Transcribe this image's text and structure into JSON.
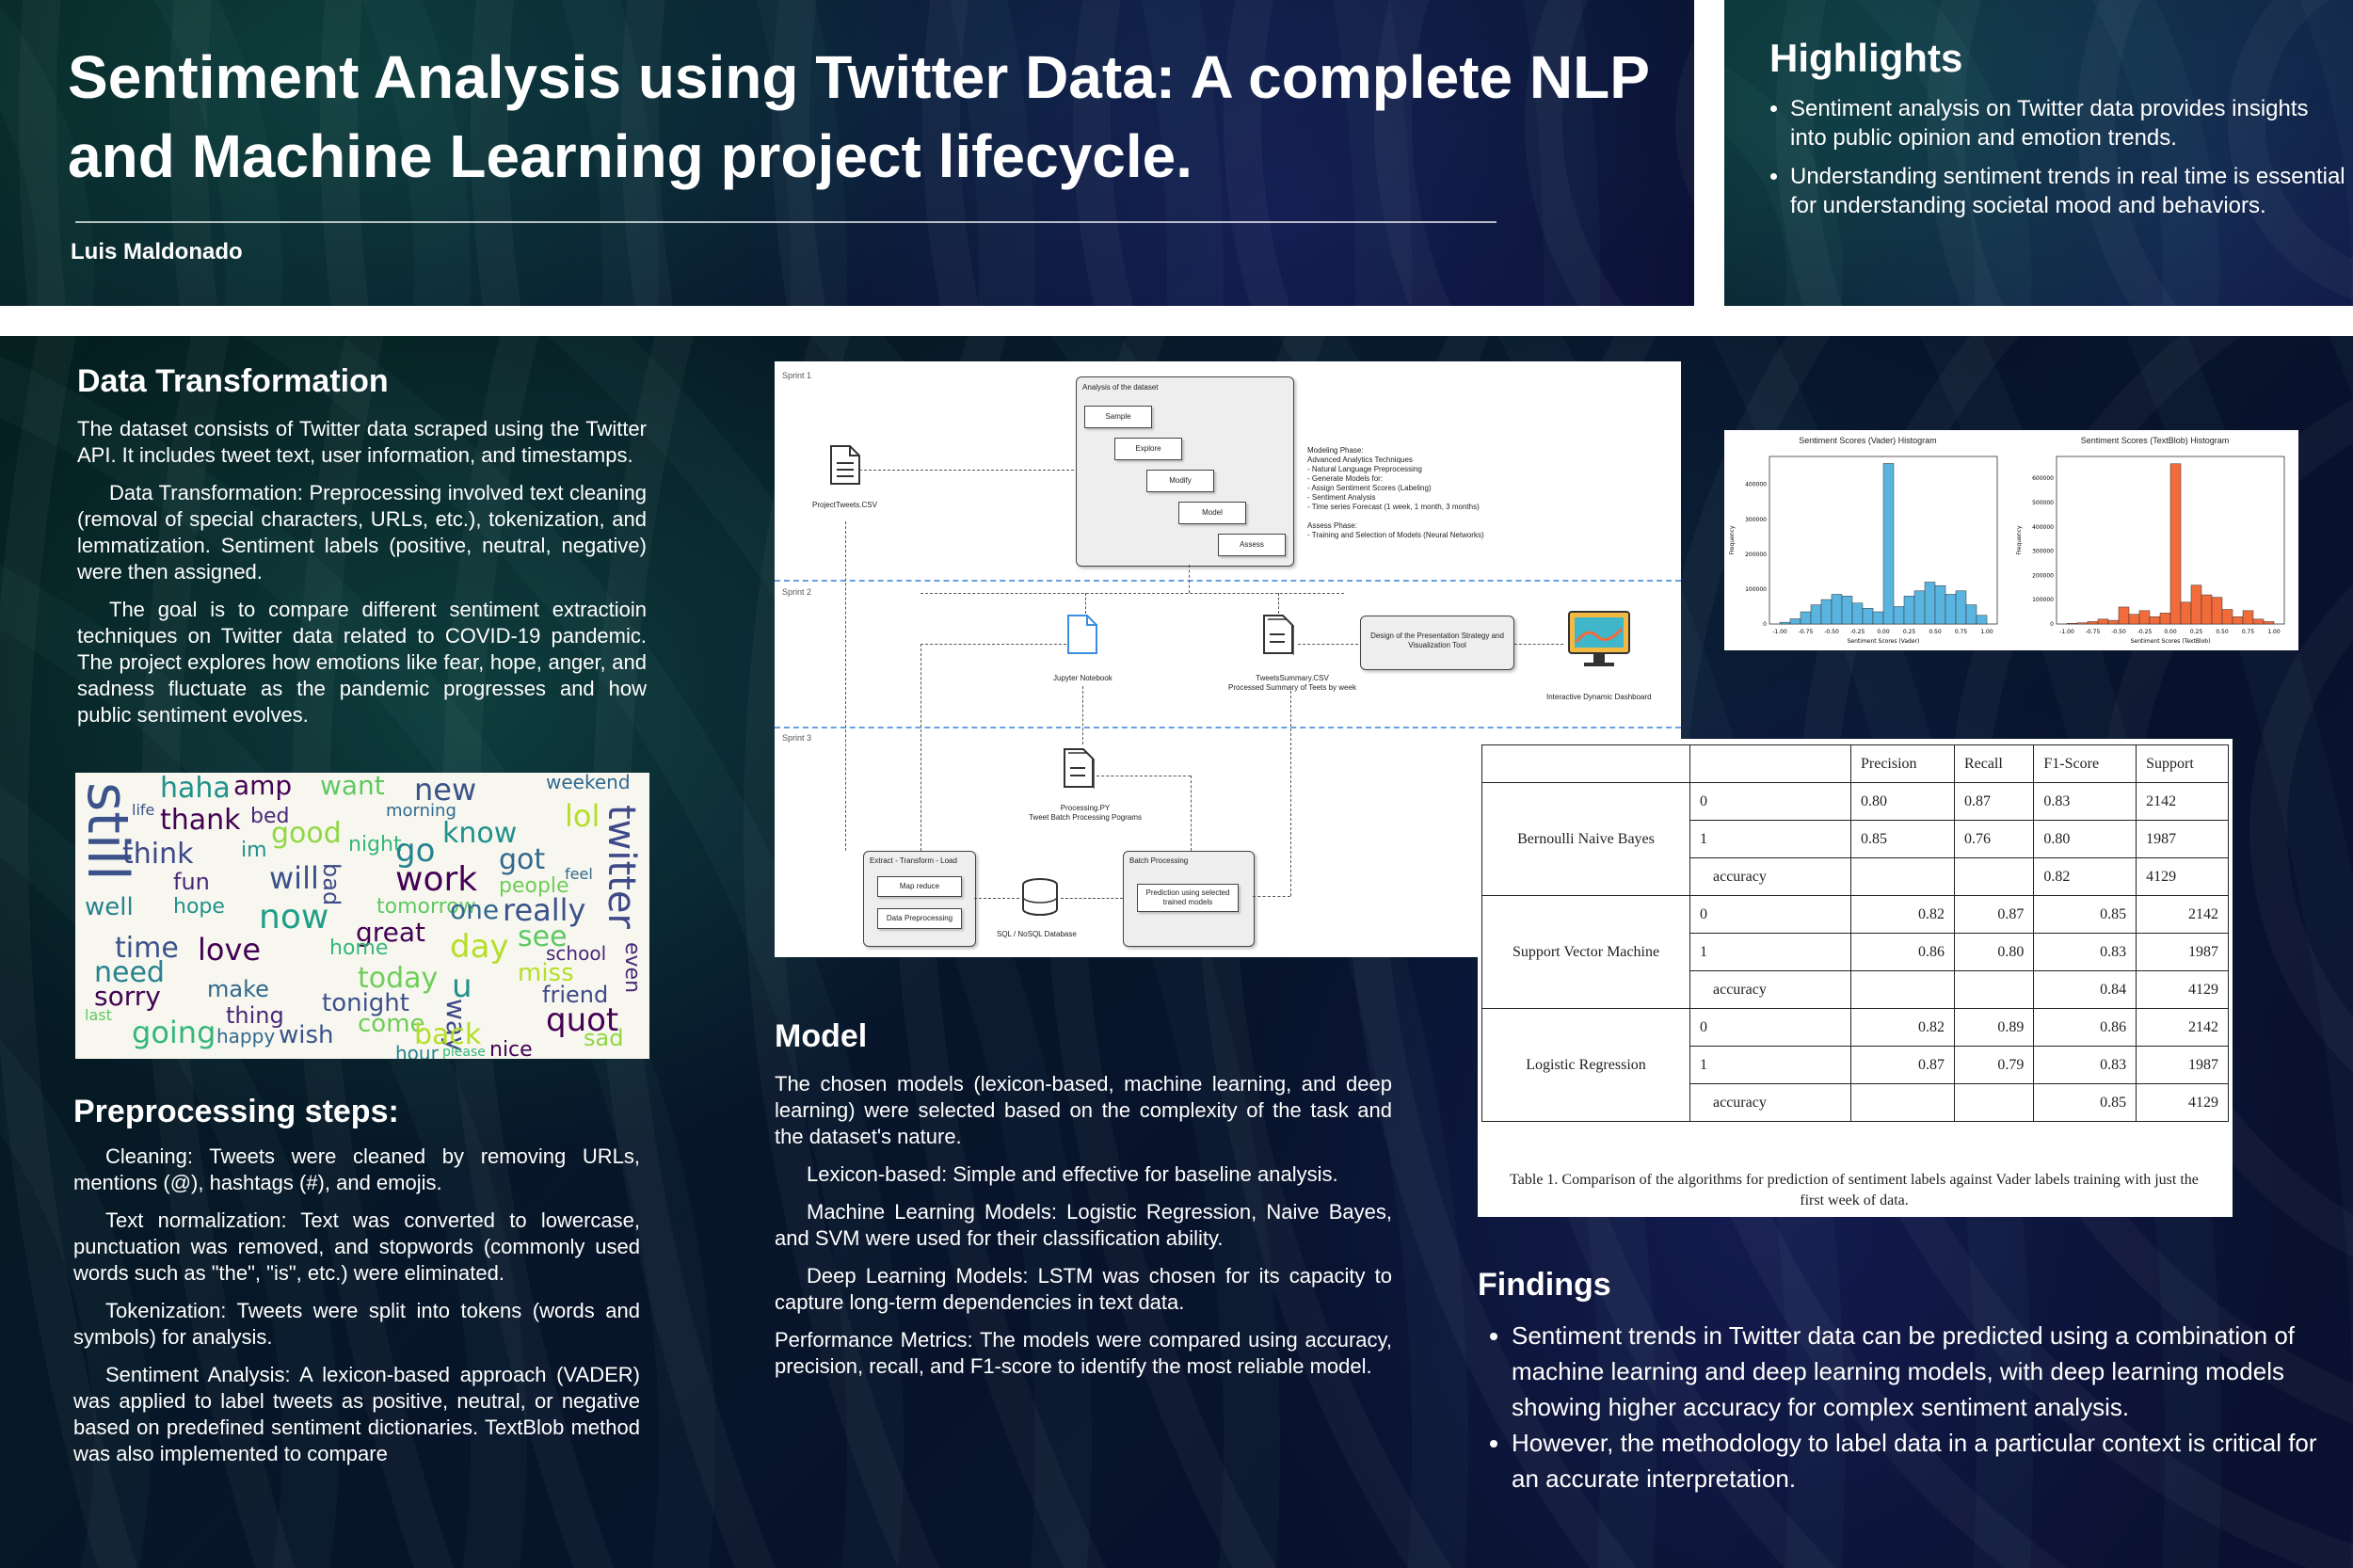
{
  "header": {
    "title": "Sentiment Analysis using Twitter Data: A complete NLP and Machine Learning project lifecycle.",
    "author": "Luis Maldonado"
  },
  "highlights": {
    "title": "Highlights",
    "items": [
      "Sentiment analysis on Twitter data provides insights into public opinion and emotion trends.",
      "Understanding sentiment trends in real time is essential for understanding societal mood and behaviors."
    ]
  },
  "data_transformation": {
    "title": "Data Transformation",
    "paragraphs": [
      "The dataset consists of Twitter data scraped using the Twitter API. It includes tweet text, user information, and timestamps.",
      "Data Transformation: Preprocessing involved text cleaning (removal of special characters, URLs, etc.), tokenization, and lemmatization. Sentiment labels (positive, neutral, negative) were then assigned.",
      "The goal is to compare different sentiment extractioin techniques on Twitter data related to COVID-19 pandemic. The project explores how emotions like fear, hope, anger, and sadness fluctuate as the pandemic progresses and how public sentiment evolves."
    ]
  },
  "wordcloud": {
    "words": [
      {
        "t": "still",
        "c": "#3b528b"
      },
      {
        "t": "haha",
        "c": "#21918c"
      },
      {
        "t": "amp",
        "c": "#440154"
      },
      {
        "t": "want",
        "c": "#5ec962"
      },
      {
        "t": "new",
        "c": "#3b528b"
      },
      {
        "t": "weekend",
        "c": "#31688e"
      },
      {
        "t": "thank",
        "c": "#440154"
      },
      {
        "t": "bed",
        "c": "#482878"
      },
      {
        "t": "good",
        "c": "#90d743"
      },
      {
        "t": "morning",
        "c": "#31688e"
      },
      {
        "t": "know",
        "c": "#21918c"
      },
      {
        "t": "lol",
        "c": "#b5de2b"
      },
      {
        "t": "think",
        "c": "#3e4989"
      },
      {
        "t": "night",
        "c": "#35b779"
      },
      {
        "t": "go",
        "c": "#26828e"
      },
      {
        "t": "work",
        "c": "#440154"
      },
      {
        "t": "got",
        "c": "#31688e"
      },
      {
        "t": "fun",
        "c": "#482878"
      },
      {
        "t": "will",
        "c": "#3b528b"
      },
      {
        "t": "hope",
        "c": "#21918c"
      },
      {
        "t": "tomorrow",
        "c": "#5ec962"
      },
      {
        "t": "people",
        "c": "#6ece58"
      },
      {
        "t": "twitter",
        "c": "#3e4989"
      },
      {
        "t": "well",
        "c": "#26828e"
      },
      {
        "t": "now",
        "c": "#1f9e89"
      },
      {
        "t": "great",
        "c": "#440154"
      },
      {
        "t": "one",
        "c": "#31688e"
      },
      {
        "t": "really",
        "c": "#3b528b"
      },
      {
        "t": "time",
        "c": "#3b528b"
      },
      {
        "t": "love",
        "c": "#440154"
      },
      {
        "t": "home",
        "c": "#35b779"
      },
      {
        "t": "day",
        "c": "#b5de2b"
      },
      {
        "t": "see",
        "c": "#5ec962"
      },
      {
        "t": "school",
        "c": "#482878"
      },
      {
        "t": "need",
        "c": "#26828e"
      },
      {
        "t": "today",
        "c": "#6ece58"
      },
      {
        "t": "miss",
        "c": "#b5de2b"
      },
      {
        "t": "friend",
        "c": "#3e4989"
      },
      {
        "t": "sorry",
        "c": "#440154"
      },
      {
        "t": "make",
        "c": "#31688e"
      },
      {
        "t": "tonight",
        "c": "#3b528b"
      },
      {
        "t": "u",
        "c": "#21918c"
      },
      {
        "t": "way",
        "c": "#3e4989"
      },
      {
        "t": "quot",
        "c": "#440154"
      },
      {
        "t": "going",
        "c": "#35b779"
      },
      {
        "t": "thing",
        "c": "#482878"
      },
      {
        "t": "wish",
        "c": "#3b528b"
      },
      {
        "t": "come",
        "c": "#6ece58"
      },
      {
        "t": "back",
        "c": "#b5de2b"
      },
      {
        "t": "nice",
        "c": "#440154"
      },
      {
        "t": "sad",
        "c": "#90d743"
      },
      {
        "t": "happy",
        "c": "#31688e"
      },
      {
        "t": "hour",
        "c": "#26828e"
      },
      {
        "t": "even",
        "c": "#482878"
      },
      {
        "t": "bad",
        "c": "#3e4989"
      },
      {
        "t": "im",
        "c": "#21918c"
      },
      {
        "t": "last",
        "c": "#5ec962"
      },
      {
        "t": "life",
        "c": "#3b528b"
      },
      {
        "t": "feel",
        "c": "#31688e"
      },
      {
        "t": "please",
        "c": "#35b779"
      }
    ]
  },
  "preprocessing": {
    "title": "Preprocessing steps:",
    "paragraphs": [
      "Cleaning: Tweets were cleaned by removing URLs, mentions (@), hashtags (#), and emojis.",
      "Text normalization: Text was converted to lowercase, punctuation was removed, and stopwords (commonly used words such as \"the\", \"is\", etc.) were eliminated.",
      "Tokenization: Tweets were split into tokens (words and symbols) for analysis.",
      "Sentiment Analysis: A lexicon-based approach (VADER) was applied to label tweets as positive, neutral, or negative based on predefined sentiment dictionaries. TextBlob method was also implemented to compare"
    ]
  },
  "workflow": {
    "sprint1": "Sprint 1",
    "sprint2": "Sprint 2",
    "sprint3": "Sprint 3",
    "analysis_title": "Analysis of the dataset",
    "steps": [
      "Sample",
      "Explore",
      "Modify",
      "Model",
      "Assess"
    ],
    "project_tweets": "ProjectTweets.CSV",
    "modeling_notes": "Modeling Phase:\nAdvanced Analytics Techniques\n- Natural Language Preprocessing\n- Generate Models for:\n   - Assign Sentiment Scores (Labeling)\n   - Sentiment Analysis\n   - Time series Forecast (1 week, 1 month, 3 months)\n\nAssess Phase:\n- Training and Selection of Models (Neural Networks)",
    "jupyter": "Jupyter Notebook",
    "tweets_summary": "TweetsSummary.CSV\nProcessed Summary of Teets by week",
    "presentation": "Design of the Presentation Strategy and Visualization Tool",
    "dashboard": "Interactive Dynamic Dashboard",
    "processing": "Processing.PY\nTweet Batch Processing Pograms",
    "etl_title": "Extract - Transform - Load",
    "map_reduce": "Map reduce",
    "data_preprocessing": "Data Preprocessing",
    "database": "SQL / NoSQL Database",
    "batch_title": "Batch Processing",
    "prediction": "Prediction using selected trained models"
  },
  "chart_data": [
    {
      "type": "bar",
      "title": "Sentiment Scores (Vader) Histogram",
      "xlabel": "Sentiment Scores (Vader)",
      "ylabel": "Frequency",
      "x": [
        -1.0,
        -0.9,
        -0.8,
        -0.7,
        -0.6,
        -0.5,
        -0.4,
        -0.3,
        -0.2,
        -0.1,
        0.0,
        0.1,
        0.2,
        0.3,
        0.4,
        0.5,
        0.6,
        0.7,
        0.8,
        0.9
      ],
      "values": [
        5000,
        15000,
        35000,
        55000,
        70000,
        85000,
        80000,
        60000,
        45000,
        35000,
        460000,
        50000,
        80000,
        95000,
        120000,
        110000,
        85000,
        95000,
        55000,
        25000
      ],
      "ylim": [
        0,
        480000
      ],
      "xticks": [
        "-1.00",
        "-0.75",
        "-0.50",
        "-0.25",
        "0.00",
        "0.25",
        "0.50",
        "0.75",
        "1.00"
      ],
      "yticks": [
        "0",
        "100000",
        "200000",
        "300000",
        "400000"
      ],
      "color": "#5ab4e0"
    },
    {
      "type": "bar",
      "title": "Sentiment Scores (TextBlob) Histogram",
      "xlabel": "Sentiment Scores (TextBlob)",
      "ylabel": "Frequency",
      "x": [
        -1.0,
        -0.9,
        -0.8,
        -0.7,
        -0.6,
        -0.5,
        -0.4,
        -0.3,
        -0.2,
        -0.1,
        0.0,
        0.1,
        0.2,
        0.3,
        0.4,
        0.5,
        0.6,
        0.7,
        0.8,
        0.9
      ],
      "values": [
        3000,
        5000,
        10000,
        20000,
        15000,
        70000,
        40000,
        55000,
        30000,
        45000,
        660000,
        90000,
        160000,
        120000,
        110000,
        60000,
        30000,
        55000,
        20000,
        10000
      ],
      "ylim": [
        0,
        690000
      ],
      "xticks": [
        "-1.00",
        "-0.75",
        "-0.50",
        "-0.25",
        "0.00",
        "0.25",
        "0.50",
        "0.75",
        "1.00"
      ],
      "yticks": [
        "0",
        "100000",
        "200000",
        "300000",
        "400000",
        "500000",
        "600000"
      ],
      "color": "#f26b3a"
    }
  ],
  "results_table": {
    "headers": [
      "",
      "",
      "Precision",
      "Recall",
      "F1-Score",
      "Support"
    ],
    "models": [
      {
        "name": "Bernoulli Naive Bayes",
        "rows": [
          {
            "label": "0",
            "precision": "0.80",
            "recall": "0.87",
            "f1": "0.83",
            "support": "2142"
          },
          {
            "label": "1",
            "precision": "0.85",
            "recall": "0.76",
            "f1": "0.80",
            "support": "1987"
          },
          {
            "label": "accuracy",
            "precision": "",
            "recall": "",
            "f1": "0.82",
            "support": "4129"
          }
        ]
      },
      {
        "name": "Support Vector Machine",
        "rows": [
          {
            "label": "0",
            "precision": "0.82",
            "recall": "0.87",
            "f1": "0.85",
            "support": "2142"
          },
          {
            "label": "1",
            "precision": "0.86",
            "recall": "0.80",
            "f1": "0.83",
            "support": "1987"
          },
          {
            "label": "accuracy",
            "precision": "",
            "recall": "",
            "f1": "0.84",
            "support": "4129"
          }
        ]
      },
      {
        "name": "Logistic Regression",
        "rows": [
          {
            "label": "0",
            "precision": "0.82",
            "recall": "0.89",
            "f1": "0.86",
            "support": "2142"
          },
          {
            "label": "1",
            "precision": "0.87",
            "recall": "0.79",
            "f1": "0.83",
            "support": "1987"
          },
          {
            "label": "accuracy",
            "precision": "",
            "recall": "",
            "f1": "0.85",
            "support": "4129"
          }
        ]
      }
    ],
    "caption": "Table 1. Comparison of the algorithms for prediction of sentiment labels against Vader labels training with just the first week of data."
  },
  "model": {
    "title": "Model",
    "paragraphs": [
      "The chosen models (lexicon-based, machine learning, and deep learning) were selected based on the complexity of the task and the dataset's nature.",
      "Lexicon-based: Simple and effective for baseline analysis.",
      "Machine Learning Models: Logistic Regression, Naive Bayes, and SVM were used for their classification ability.",
      "Deep Learning Models: LSTM was chosen for its capacity to capture long-term dependencies in text data.",
      "Performance Metrics: The models were compared using accuracy, precision, recall, and F1-score to identify the most reliable model."
    ]
  },
  "findings": {
    "title": "Findings",
    "items": [
      "Sentiment trends in Twitter data can be predicted using a combination of machine learning and deep learning models, with deep learning models showing higher accuracy for complex sentiment analysis.",
      "However, the methodology to label data in a particular context is critical for an accurate interpretation."
    ]
  }
}
